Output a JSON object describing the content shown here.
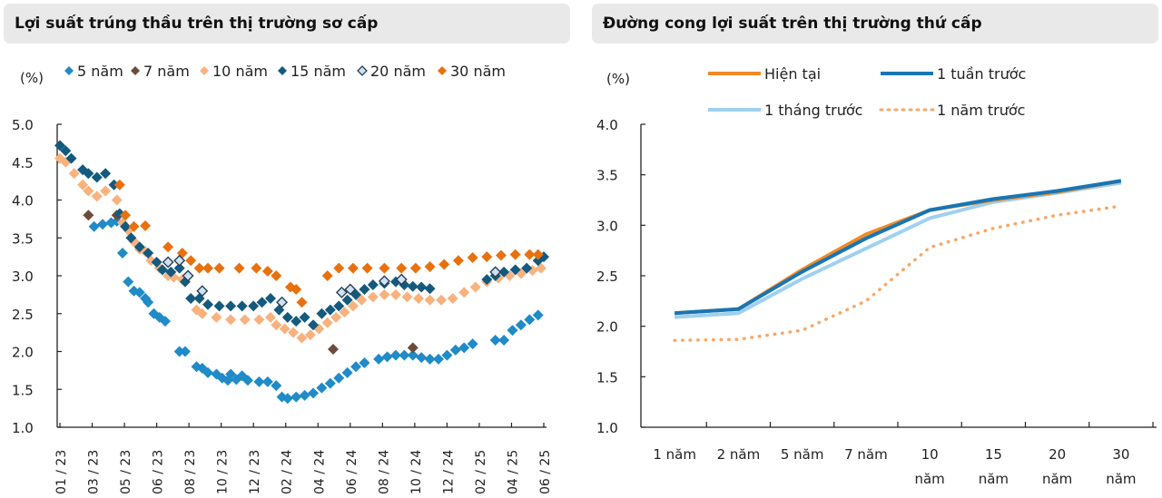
{
  "left_panel": {
    "title": "Lợi suất trúng thầu trên thị trường sơ cấp"
  },
  "right_panel": {
    "title": "Đường cong lợi suất trên thị trường thứ cấp"
  },
  "chart_data": [
    {
      "type": "scatter",
      "title": "Lợi suất trúng thầu trên thị trường sơ cấp",
      "ylabel": "(%)",
      "xlabel": "",
      "ylim": [
        1.0,
        5.0
      ],
      "yticks": [
        "1.0",
        "1.5",
        "2.0",
        "2.5",
        "3.0",
        "3.5",
        "4.0",
        "4.5",
        "5.0"
      ],
      "xticks": [
        "01 / 23",
        "03 / 23",
        "05 / 23",
        "06 / 23",
        "08 / 23",
        "10 / 23",
        "12 / 23",
        "02 / 24",
        "04 / 24",
        "06 / 24",
        "08 / 24",
        "10 / 24",
        "12 / 24",
        "02 / 25",
        "04 / 25",
        "06 / 25"
      ],
      "legend_position": "top",
      "x_note": "x values are positions on the tick index scale (0 = 01/23, 15 = 06/25)",
      "series": [
        {
          "name": "5 năm",
          "color": "#1f8bc7",
          "marker": "diamond",
          "points": [
            [
              1.2,
              3.65
            ],
            [
              1.5,
              3.68
            ],
            [
              1.8,
              3.7
            ],
            [
              2.0,
              3.72
            ],
            [
              2.2,
              3.3
            ],
            [
              2.4,
              2.92
            ],
            [
              2.6,
              2.8
            ],
            [
              2.8,
              2.78
            ],
            [
              3.0,
              2.7
            ],
            [
              3.1,
              2.65
            ],
            [
              3.3,
              2.5
            ],
            [
              3.5,
              2.45
            ],
            [
              3.7,
              2.4
            ],
            [
              4.2,
              2.0
            ],
            [
              4.4,
              2.0
            ],
            [
              4.8,
              1.8
            ],
            [
              5.0,
              1.78
            ],
            [
              5.2,
              1.72
            ],
            [
              5.5,
              1.7
            ],
            [
              5.7,
              1.65
            ],
            [
              5.9,
              1.62
            ],
            [
              6.0,
              1.7
            ],
            [
              6.2,
              1.63
            ],
            [
              6.4,
              1.68
            ],
            [
              6.6,
              1.62
            ],
            [
              7.0,
              1.6
            ],
            [
              7.3,
              1.6
            ],
            [
              7.6,
              1.55
            ],
            [
              7.8,
              1.4
            ],
            [
              8.0,
              1.38
            ],
            [
              8.3,
              1.4
            ],
            [
              8.6,
              1.42
            ],
            [
              8.9,
              1.45
            ],
            [
              9.2,
              1.52
            ],
            [
              9.5,
              1.58
            ],
            [
              9.8,
              1.65
            ],
            [
              10.1,
              1.72
            ],
            [
              10.4,
              1.8
            ],
            [
              10.7,
              1.85
            ],
            [
              11.2,
              1.9
            ],
            [
              11.5,
              1.93
            ],
            [
              11.8,
              1.95
            ],
            [
              12.1,
              1.95
            ],
            [
              12.4,
              1.95
            ],
            [
              12.7,
              1.92
            ],
            [
              13.0,
              1.9
            ],
            [
              13.3,
              1.9
            ],
            [
              13.6,
              1.95
            ],
            [
              13.9,
              2.02
            ],
            [
              14.2,
              2.05
            ],
            [
              14.5,
              2.1
            ],
            [
              15.3,
              2.15
            ],
            [
              15.6,
              2.15
            ],
            [
              15.9,
              2.28
            ],
            [
              16.2,
              2.35
            ],
            [
              16.5,
              2.42
            ],
            [
              16.8,
              2.48
            ]
          ]
        },
        {
          "name": "7 năm",
          "color": "#6b4c3b",
          "marker": "diamond",
          "points": [
            [
              1.0,
              3.8
            ],
            [
              2.0,
              3.8
            ],
            [
              9.6,
              2.03
            ],
            [
              12.4,
              2.05
            ]
          ]
        },
        {
          "name": "10 năm",
          "color": "#f9b27e",
          "marker": "diamond",
          "points": [
            [
              0.0,
              4.55
            ],
            [
              0.2,
              4.5
            ],
            [
              0.5,
              4.35
            ],
            [
              0.8,
              4.2
            ],
            [
              1.0,
              4.12
            ],
            [
              1.3,
              4.05
            ],
            [
              1.6,
              4.12
            ],
            [
              2.0,
              4.0
            ],
            [
              2.2,
              3.7
            ],
            [
              2.4,
              3.6
            ],
            [
              2.6,
              3.45
            ],
            [
              2.8,
              3.35
            ],
            [
              3.0,
              3.32
            ],
            [
              3.2,
              3.2
            ],
            [
              3.5,
              3.1
            ],
            [
              3.8,
              3.0
            ],
            [
              4.0,
              2.98
            ],
            [
              4.3,
              2.95
            ],
            [
              4.6,
              2.7
            ],
            [
              4.8,
              2.55
            ],
            [
              5.0,
              2.5
            ],
            [
              5.5,
              2.45
            ],
            [
              6.0,
              2.42
            ],
            [
              6.5,
              2.42
            ],
            [
              7.0,
              2.42
            ],
            [
              7.4,
              2.45
            ],
            [
              7.6,
              2.35
            ],
            [
              7.9,
              2.3
            ],
            [
              8.2,
              2.25
            ],
            [
              8.5,
              2.18
            ],
            [
              8.8,
              2.22
            ],
            [
              9.1,
              2.3
            ],
            [
              9.4,
              2.38
            ],
            [
              9.7,
              2.45
            ],
            [
              10.0,
              2.52
            ],
            [
              10.3,
              2.6
            ],
            [
              10.6,
              2.68
            ],
            [
              11.0,
              2.72
            ],
            [
              11.4,
              2.75
            ],
            [
              11.8,
              2.75
            ],
            [
              12.2,
              2.72
            ],
            [
              12.6,
              2.7
            ],
            [
              13.0,
              2.68
            ],
            [
              13.4,
              2.68
            ],
            [
              13.8,
              2.7
            ],
            [
              14.2,
              2.78
            ],
            [
              14.6,
              2.85
            ],
            [
              15.0,
              2.92
            ],
            [
              15.4,
              2.97
            ],
            [
              15.8,
              3.0
            ],
            [
              16.2,
              3.03
            ],
            [
              16.6,
              3.07
            ],
            [
              16.9,
              3.1
            ]
          ]
        },
        {
          "name": "15 năm",
          "color": "#145a7e",
          "marker": "diamond",
          "points": [
            [
              0.0,
              4.72
            ],
            [
              0.2,
              4.65
            ],
            [
              0.4,
              4.55
            ],
            [
              0.8,
              4.4
            ],
            [
              1.0,
              4.35
            ],
            [
              1.3,
              4.3
            ],
            [
              1.6,
              4.35
            ],
            [
              1.9,
              4.2
            ],
            [
              2.1,
              3.82
            ],
            [
              2.3,
              3.65
            ],
            [
              2.5,
              3.5
            ],
            [
              2.8,
              3.38
            ],
            [
              3.1,
              3.3
            ],
            [
              3.4,
              3.18
            ],
            [
              3.6,
              3.08
            ],
            [
              3.9,
              3.05
            ],
            [
              4.2,
              3.1
            ],
            [
              4.4,
              2.92
            ],
            [
              4.6,
              2.7
            ],
            [
              4.9,
              2.7
            ],
            [
              5.2,
              2.62
            ],
            [
              5.6,
              2.6
            ],
            [
              6.0,
              2.6
            ],
            [
              6.4,
              2.6
            ],
            [
              6.8,
              2.6
            ],
            [
              7.1,
              2.65
            ],
            [
              7.4,
              2.7
            ],
            [
              7.7,
              2.55
            ],
            [
              8.0,
              2.45
            ],
            [
              8.3,
              2.4
            ],
            [
              8.6,
              2.45
            ],
            [
              8.9,
              2.35
            ],
            [
              9.2,
              2.5
            ],
            [
              9.5,
              2.55
            ],
            [
              9.8,
              2.6
            ],
            [
              10.1,
              2.68
            ],
            [
              10.4,
              2.75
            ],
            [
              10.7,
              2.82
            ],
            [
              11.0,
              2.88
            ],
            [
              11.4,
              2.9
            ],
            [
              11.8,
              2.92
            ],
            [
              12.1,
              2.88
            ],
            [
              12.4,
              2.86
            ],
            [
              12.7,
              2.85
            ],
            [
              13.0,
              2.83
            ],
            [
              15.0,
              2.95
            ],
            [
              15.3,
              3.0
            ],
            [
              15.6,
              3.05
            ],
            [
              16.0,
              3.08
            ],
            [
              16.4,
              3.1
            ],
            [
              16.8,
              3.2
            ],
            [
              17.0,
              3.25
            ]
          ]
        },
        {
          "name": "20 năm",
          "color": "#cde3f2",
          "marker": "diamond-outline",
          "points": [
            [
              3.8,
              3.18
            ],
            [
              4.2,
              3.2
            ],
            [
              4.5,
              3.0
            ],
            [
              5.0,
              2.8
            ],
            [
              7.8,
              2.65
            ],
            [
              9.9,
              2.78
            ],
            [
              10.2,
              2.82
            ],
            [
              11.4,
              2.93
            ],
            [
              12.0,
              2.95
            ],
            [
              15.3,
              3.05
            ]
          ]
        },
        {
          "name": "30 năm",
          "color": "#e8710f",
          "marker": "diamond",
          "points": [
            [
              2.1,
              4.2
            ],
            [
              2.3,
              3.8
            ],
            [
              2.6,
              3.65
            ],
            [
              3.0,
              3.66
            ],
            [
              3.8,
              3.38
            ],
            [
              4.3,
              3.3
            ],
            [
              4.6,
              3.2
            ],
            [
              4.9,
              3.1
            ],
            [
              5.2,
              3.1
            ],
            [
              5.6,
              3.1
            ],
            [
              6.3,
              3.1
            ],
            [
              6.9,
              3.1
            ],
            [
              7.3,
              3.06
            ],
            [
              7.6,
              3.0
            ],
            [
              8.1,
              2.85
            ],
            [
              8.3,
              2.82
            ],
            [
              8.5,
              2.65
            ],
            [
              9.4,
              3.0
            ],
            [
              9.8,
              3.1
            ],
            [
              10.3,
              3.1
            ],
            [
              10.8,
              3.1
            ],
            [
              11.4,
              3.1
            ],
            [
              12.0,
              3.1
            ],
            [
              12.5,
              3.1
            ],
            [
              13.0,
              3.12
            ],
            [
              13.5,
              3.15
            ],
            [
              14.0,
              3.2
            ],
            [
              14.5,
              3.24
            ],
            [
              15.0,
              3.25
            ],
            [
              15.5,
              3.27
            ],
            [
              16.0,
              3.28
            ],
            [
              16.5,
              3.28
            ],
            [
              16.8,
              3.28
            ]
          ]
        }
      ]
    },
    {
      "type": "line",
      "title": "Đường cong lợi suất trên thị trường thứ cấp",
      "ylabel": "(%)",
      "xlabel": "",
      "ylim": [
        1.0,
        4.0
      ],
      "yticks": [
        "1.0",
        "1.5",
        "2.0",
        "2.5",
        "3.0",
        "3.5",
        "4.0"
      ],
      "categories": [
        [
          "1 năm"
        ],
        [
          "2 năm"
        ],
        [
          "5 năm"
        ],
        [
          "7 năm"
        ],
        [
          "10",
          "năm"
        ],
        [
          "15",
          "năm"
        ],
        [
          "20",
          "năm"
        ],
        [
          "30",
          "năm"
        ]
      ],
      "legend_position": "top",
      "series": [
        {
          "name": "Hiện tại",
          "color": "#f08a24",
          "style": "solid",
          "values": [
            2.13,
            2.17,
            2.56,
            2.91,
            3.15,
            3.25,
            3.33,
            3.44
          ]
        },
        {
          "name": "1 tuần trước",
          "color": "#1876b4",
          "style": "solid",
          "values": [
            2.13,
            2.17,
            2.54,
            2.87,
            3.15,
            3.26,
            3.34,
            3.44
          ]
        },
        {
          "name": "1 tháng trước",
          "color": "#9fd0ef",
          "style": "solid",
          "values": [
            2.09,
            2.13,
            2.47,
            2.77,
            3.07,
            3.23,
            3.32,
            3.42
          ]
        },
        {
          "name": "1 năm trước",
          "color": "#f7a868",
          "style": "dotted",
          "values": [
            1.86,
            1.87,
            1.96,
            2.25,
            2.78,
            2.97,
            3.1,
            3.19
          ]
        }
      ]
    }
  ]
}
